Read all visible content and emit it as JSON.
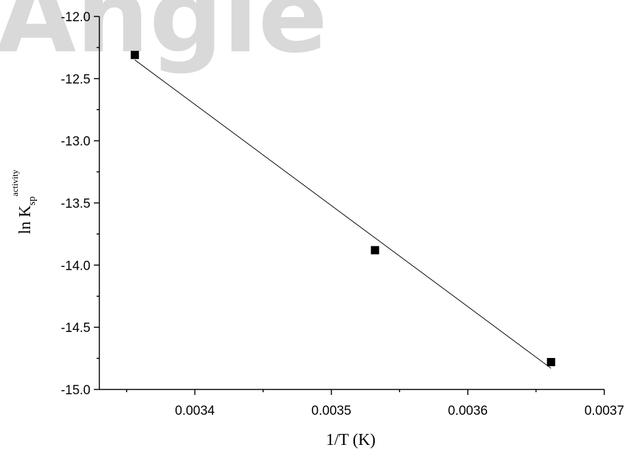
{
  "watermark": "Angle",
  "chart_data": {
    "type": "scatter",
    "xlabel": "1/T (K)",
    "ylabel": {
      "main": "ln K",
      "subscript": "sp",
      "superscript": "activity"
    },
    "xlim": [
      0.00333,
      0.0037
    ],
    "ylim": [
      -15.0,
      -12.0
    ],
    "xticks": [
      0.0034,
      0.0035,
      0.0036,
      0.0037
    ],
    "xtick_labels": [
      "0.0034",
      "0.0035",
      "0.0036",
      "0.0037"
    ],
    "yticks": [
      -12.0,
      -12.5,
      -13.0,
      -13.5,
      -14.0,
      -14.5,
      -15.0
    ],
    "ytick_labels": [
      "-12.0",
      "-12.5",
      "-13.0",
      "-13.5",
      "-14.0",
      "-14.5",
      "-15.0"
    ],
    "grid": false,
    "series": [
      {
        "marker": "square",
        "color": "#000000",
        "points": [
          {
            "x": 0.003356,
            "y": -12.31
          },
          {
            "x": 0.003532,
            "y": -13.88
          },
          {
            "x": 0.003661,
            "y": -14.78
          }
        ]
      }
    ],
    "fit_line": {
      "color": "#000000",
      "x": [
        0.003356,
        0.003661
      ],
      "y": [
        -12.35,
        -14.83
      ]
    }
  }
}
